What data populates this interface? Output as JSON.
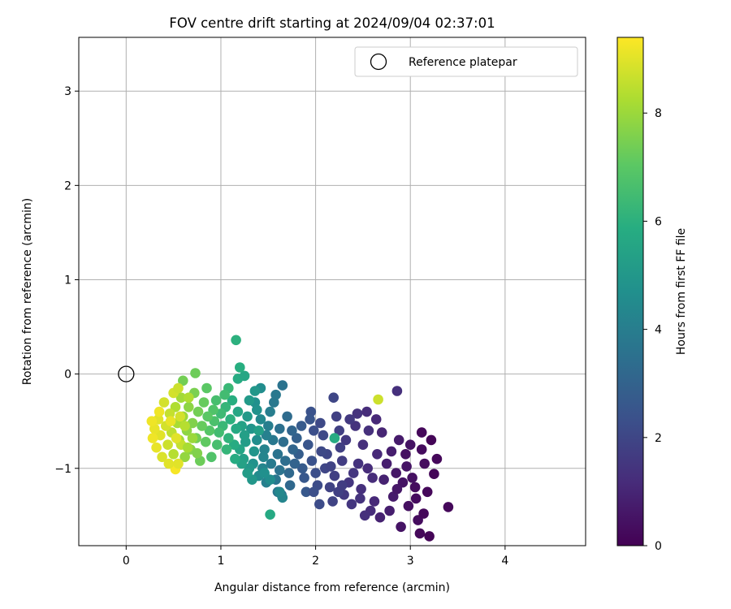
{
  "chart_data": {
    "type": "scatter",
    "title": "FOV centre drift starting at 2024/09/04 02:37:01",
    "xlabel": "Angular distance from reference (arcmin)",
    "ylabel": "Rotation from reference (arcmin)",
    "xlim": [
      -0.5,
      4.85
    ],
    "ylim": [
      -1.82,
      3.57
    ],
    "xticks": [
      0,
      1,
      2,
      3,
      4
    ],
    "yticks": [
      -1,
      0,
      1,
      2,
      3
    ],
    "grid": true,
    "colormap": "viridis",
    "colorbar": {
      "label": "Hours from first FF file",
      "min": 0,
      "max": 9.4,
      "ticks": [
        0,
        2,
        4,
        6,
        8
      ]
    },
    "legend": {
      "location": "upper right",
      "entries": [
        {
          "label": "Reference platepar",
          "marker": "open-circle"
        }
      ]
    },
    "reference_point": {
      "x": 0,
      "y": 0
    },
    "series": [
      {
        "points": [
          [
            3.22,
            -0.7,
            0.1
          ],
          [
            3.25,
            -1.06,
            0.1
          ],
          [
            3.4,
            -1.41,
            0.2
          ],
          [
            3.2,
            -1.72,
            0.1
          ],
          [
            3.12,
            -0.62,
            0.2
          ],
          [
            3.28,
            -0.9,
            0.2
          ],
          [
            3.1,
            -1.69,
            0.2
          ],
          [
            3.05,
            -1.2,
            0.3
          ],
          [
            2.95,
            -0.85,
            0.4
          ],
          [
            3.15,
            -0.95,
            0.3
          ],
          [
            3.08,
            -1.55,
            0.3
          ],
          [
            2.9,
            -1.62,
            0.5
          ],
          [
            3.0,
            -0.75,
            0.5
          ],
          [
            2.85,
            -1.05,
            0.6
          ],
          [
            3.18,
            -1.25,
            0.2
          ],
          [
            2.98,
            -1.4,
            0.4
          ],
          [
            2.75,
            -0.95,
            0.8
          ],
          [
            2.82,
            -1.3,
            0.7
          ],
          [
            3.02,
            -1.1,
            0.4
          ],
          [
            2.68,
            -1.52,
            0.9
          ],
          [
            3.12,
            -0.8,
            0.3
          ],
          [
            2.92,
            -1.15,
            0.5
          ],
          [
            2.78,
            -1.45,
            0.8
          ],
          [
            2.88,
            -0.7,
            0.7
          ],
          [
            3.06,
            -1.32,
            0.3
          ],
          [
            2.72,
            -1.12,
            0.9
          ],
          [
            2.96,
            -0.98,
            0.5
          ],
          [
            3.14,
            -1.48,
            0.2
          ],
          [
            2.86,
            -1.22,
            0.6
          ],
          [
            2.8,
            -0.82,
            0.8
          ],
          [
            2.62,
            -1.35,
            1.1
          ],
          [
            2.7,
            -0.62,
            1.0
          ],
          [
            2.55,
            -1.0,
            1.2
          ],
          [
            2.48,
            -1.22,
            1.3
          ],
          [
            2.65,
            -0.85,
            1.1
          ],
          [
            2.58,
            -1.45,
            1.2
          ],
          [
            2.42,
            -0.55,
            1.4
          ],
          [
            2.5,
            -0.75,
            1.3
          ],
          [
            2.38,
            -1.38,
            1.5
          ],
          [
            2.45,
            -0.95,
            1.4
          ],
          [
            2.6,
            -1.1,
            1.2
          ],
          [
            2.35,
            -1.15,
            1.5
          ],
          [
            2.52,
            -1.5,
            1.3
          ],
          [
            2.44,
            -0.42,
            1.4
          ],
          [
            2.32,
            -0.7,
            1.6
          ],
          [
            2.4,
            -1.05,
            1.5
          ],
          [
            2.56,
            -0.6,
            1.3
          ],
          [
            2.28,
            -0.92,
            1.7
          ],
          [
            2.47,
            -1.32,
            1.4
          ],
          [
            2.36,
            -0.48,
            1.6
          ],
          [
            2.86,
            -0.18,
            1.3
          ],
          [
            2.64,
            -0.48,
            1.1
          ],
          [
            2.54,
            -0.4,
            1.2
          ],
          [
            2.3,
            -1.28,
            1.6
          ],
          [
            2.2,
            -1.08,
            1.8
          ],
          [
            2.25,
            -0.6,
            1.8
          ],
          [
            2.18,
            -1.35,
            1.9
          ],
          [
            2.12,
            -0.85,
            2.0
          ],
          [
            2.22,
            -0.45,
            1.8
          ],
          [
            2.15,
            -1.2,
            1.9
          ],
          [
            2.08,
            -0.65,
            2.1
          ],
          [
            2.26,
            -0.78,
            1.8
          ],
          [
            2.1,
            -1.0,
            2.0
          ],
          [
            2.24,
            -1.25,
            1.8
          ],
          [
            2.05,
            -0.52,
            2.1
          ],
          [
            2.16,
            -0.98,
            1.9
          ],
          [
            2.02,
            -1.18,
            2.2
          ],
          [
            1.98,
            -0.6,
            2.3
          ],
          [
            2.06,
            -0.82,
            2.1
          ],
          [
            2.19,
            -0.25,
            2.0
          ],
          [
            2.04,
            -1.38,
            2.2
          ],
          [
            2.28,
            -1.18,
            1.7
          ],
          [
            1.95,
            -0.4,
            2.4
          ],
          [
            1.92,
            -0.75,
            2.5
          ],
          [
            1.88,
            -1.1,
            2.6
          ],
          [
            1.96,
            -0.92,
            2.4
          ],
          [
            1.85,
            -0.55,
            2.7
          ],
          [
            1.9,
            -1.25,
            2.6
          ],
          [
            2.0,
            -1.05,
            2.3
          ],
          [
            1.82,
            -0.85,
            2.8
          ],
          [
            1.94,
            -0.48,
            2.5
          ],
          [
            1.86,
            -1.0,
            2.7
          ],
          [
            1.8,
            -0.68,
            2.9
          ],
          [
            1.98,
            -1.25,
            2.3
          ],
          [
            1.78,
            -0.95,
            3.0
          ],
          [
            1.75,
            -0.6,
            3.1
          ],
          [
            1.72,
            -1.05,
            3.2
          ],
          [
            1.76,
            -0.8,
            3.1
          ],
          [
            1.7,
            -0.45,
            3.3
          ],
          [
            1.68,
            -0.92,
            3.4
          ],
          [
            1.73,
            -1.18,
            3.2
          ],
          [
            1.66,
            -0.72,
            3.4
          ],
          [
            1.64,
            -1.28,
            3.5
          ],
          [
            1.62,
            -0.58,
            3.5
          ],
          [
            1.6,
            -0.85,
            3.6
          ],
          [
            1.58,
            -1.12,
            3.7
          ],
          [
            1.56,
            -0.3,
            3.8
          ],
          [
            1.65,
            -0.12,
            3.6
          ],
          [
            1.55,
            -0.7,
            3.8
          ],
          [
            1.62,
            -1.02,
            3.6
          ],
          [
            1.53,
            -0.95,
            3.9
          ],
          [
            1.5,
            -0.55,
            4.0
          ],
          [
            1.48,
            -1.15,
            4.1
          ],
          [
            1.52,
            -0.4,
            4.0
          ],
          [
            1.46,
            -0.8,
            4.2
          ],
          [
            1.58,
            -0.22,
            3.8
          ],
          [
            1.44,
            -1.0,
            4.3
          ],
          [
            1.48,
            -0.65,
            4.1
          ],
          [
            1.42,
            -0.48,
            4.4
          ],
          [
            1.6,
            -1.25,
            3.7
          ],
          [
            1.4,
            -1.08,
            4.5
          ],
          [
            1.45,
            -0.88,
            4.3
          ],
          [
            1.38,
            -0.7,
            4.6
          ],
          [
            1.36,
            -0.3,
            4.7
          ],
          [
            1.65,
            -1.31,
            4.3
          ],
          [
            1.62,
            -1.25,
            4.4
          ],
          [
            1.52,
            -1.12,
            4.6
          ],
          [
            1.46,
            -1.05,
            4.7
          ],
          [
            1.34,
            -0.95,
            4.8
          ],
          [
            1.42,
            -0.15,
            4.6
          ],
          [
            1.32,
            -0.58,
            4.9
          ],
          [
            1.3,
            -1.0,
            5.0
          ],
          [
            1.28,
            -0.45,
            5.1
          ],
          [
            1.35,
            -0.82,
            4.9
          ],
          [
            1.26,
            -0.72,
            5.2
          ],
          [
            1.38,
            -0.38,
            4.8
          ],
          [
            1.24,
            -0.9,
            5.3
          ],
          [
            1.33,
            -1.12,
            5.0
          ],
          [
            1.22,
            -0.55,
            5.4
          ],
          [
            1.3,
            -0.28,
            5.1
          ],
          [
            1.2,
            -0.8,
            5.5
          ],
          [
            1.28,
            -1.05,
            5.2
          ],
          [
            1.18,
            -0.4,
            5.6
          ],
          [
            1.25,
            -0.65,
            5.3
          ],
          [
            1.36,
            -0.18,
            5.0
          ],
          [
            1.22,
            -0.95,
            5.4
          ],
          [
            1.16,
            -0.58,
            5.7
          ],
          [
            1.4,
            -0.6,
            5.3
          ],
          [
            1.14,
            -0.75,
            5.8
          ],
          [
            1.12,
            -0.28,
            5.9
          ],
          [
            1.1,
            -0.48,
            6.0
          ],
          [
            1.08,
            -0.68,
            6.1
          ],
          [
            1.15,
            -0.9,
            5.8
          ],
          [
            1.05,
            -0.35,
            6.2
          ],
          [
            1.18,
            -0.05,
            5.8
          ],
          [
            1.25,
            -0.02,
            5.6
          ],
          [
            1.52,
            -1.49,
            5.7
          ],
          [
            1.16,
            0.36,
            6.0
          ],
          [
            1.02,
            -0.55,
            6.3
          ],
          [
            1.06,
            -0.8,
            6.2
          ],
          [
            1.0,
            -0.42,
            6.4
          ],
          [
            0.98,
            -0.62,
            6.5
          ],
          [
            1.2,
            0.07,
            5.9
          ],
          [
            1.08,
            -0.15,
            6.3
          ],
          [
            0.95,
            -0.28,
            6.6
          ],
          [
            0.96,
            -0.75,
            6.6
          ],
          [
            0.93,
            -0.5,
            6.7
          ],
          [
            1.04,
            -0.22,
            6.5
          ],
          [
            0.9,
            -0.88,
            6.8
          ],
          [
            0.92,
            -0.38,
            6.8
          ],
          [
            0.88,
            -0.6,
            6.9
          ],
          [
            0.85,
            -0.15,
            7.0
          ],
          [
            0.86,
            -0.45,
            7.0
          ],
          [
            0.84,
            -0.72,
            7.1
          ],
          [
            0.82,
            -0.3,
            7.2
          ],
          [
            0.8,
            -0.55,
            7.2
          ],
          [
            0.78,
            -0.92,
            7.3
          ],
          [
            0.76,
            -0.4,
            7.4
          ],
          [
            0.74,
            -0.68,
            7.4
          ],
          [
            0.72,
            -0.2,
            7.5
          ],
          [
            0.73,
            0.01,
            7.3
          ],
          [
            0.7,
            -0.52,
            7.6
          ],
          [
            0.6,
            -0.07,
            7.4
          ],
          [
            0.68,
            -0.8,
            7.7
          ],
          [
            0.66,
            -0.35,
            7.8
          ],
          [
            0.64,
            -0.6,
            7.8
          ],
          [
            0.62,
            -0.88,
            7.9
          ],
          [
            0.6,
            -0.45,
            8.0
          ],
          [
            0.58,
            -0.25,
            8.1
          ],
          [
            0.56,
            -0.7,
            8.1
          ],
          [
            0.54,
            -0.52,
            8.2
          ],
          [
            0.52,
            -0.35,
            8.3
          ],
          [
            0.5,
            -0.85,
            8.4
          ],
          [
            0.48,
            -0.62,
            8.5
          ],
          [
            0.46,
            -0.42,
            8.6
          ],
          [
            0.44,
            -0.75,
            8.7
          ],
          [
            0.42,
            -0.55,
            8.8
          ],
          [
            0.4,
            -0.3,
            8.8
          ],
          [
            0.38,
            -0.88,
            8.9
          ],
          [
            0.36,
            -0.65,
            9.0
          ],
          [
            0.34,
            -0.48,
            9.0
          ],
          [
            0.32,
            -0.78,
            9.1
          ],
          [
            0.3,
            -0.58,
            9.1
          ],
          [
            0.28,
            -0.68,
            9.2
          ],
          [
            0.27,
            -0.5,
            9.2
          ],
          [
            0.52,
            -1.01,
            9.3
          ],
          [
            0.55,
            -0.95,
            9.0
          ],
          [
            0.58,
            -0.75,
            8.6
          ],
          [
            0.62,
            -0.55,
            8.4
          ],
          [
            0.45,
            -0.95,
            9.0
          ],
          [
            0.5,
            -0.2,
            8.8
          ],
          [
            0.55,
            -0.15,
            8.7
          ],
          [
            0.66,
            -0.25,
            8.3
          ],
          [
            0.7,
            -0.68,
            8.0
          ],
          [
            0.75,
            -0.84,
            7.6
          ],
          [
            0.47,
            -0.5,
            9.1
          ],
          [
            0.53,
            -0.68,
            9.0
          ],
          [
            0.35,
            -0.4,
            9.2
          ],
          [
            0.65,
            -0.78,
            8.2
          ],
          [
            0.57,
            -0.45,
            8.8
          ],
          [
            2.66,
            -0.27,
            8.7
          ],
          [
            2.2,
            -0.68,
            5.8
          ]
        ]
      }
    ]
  }
}
